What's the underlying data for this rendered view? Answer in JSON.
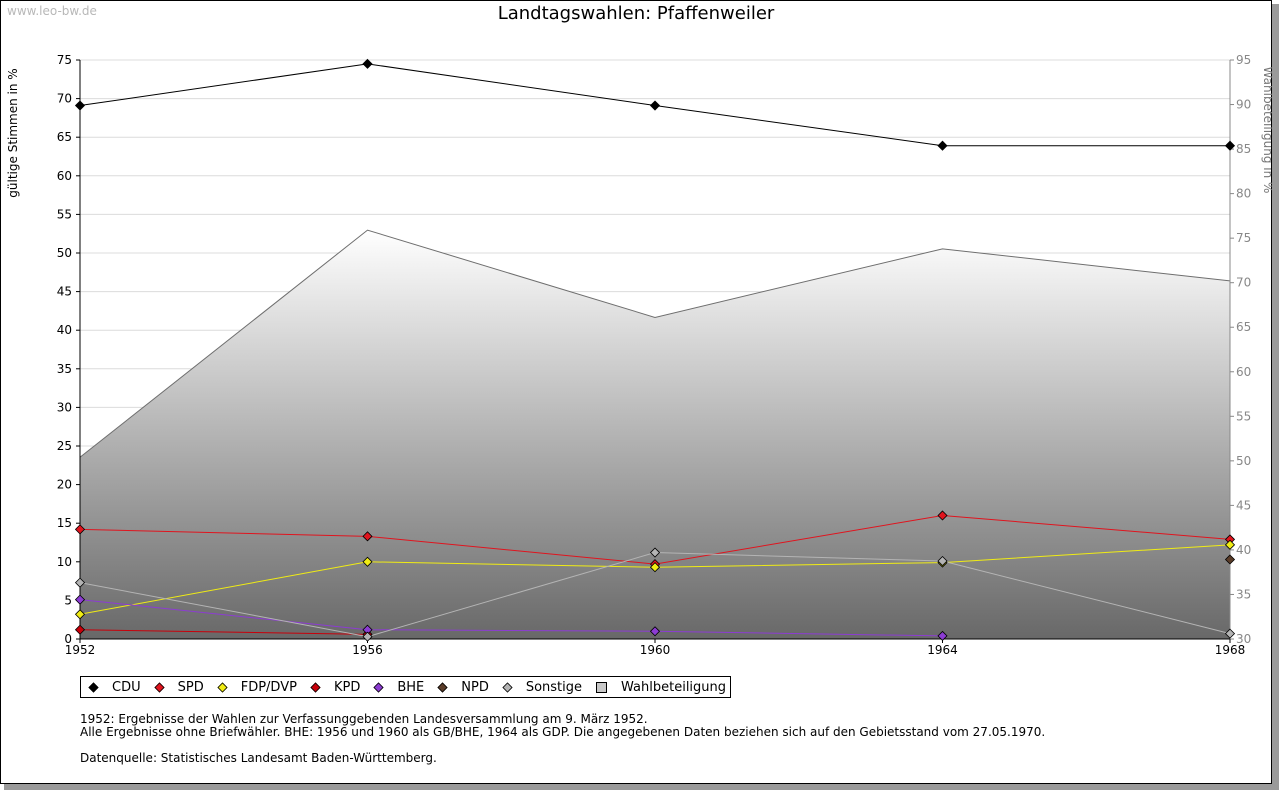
{
  "watermark": "www.leo-bw.de",
  "title": "Landtagswahlen: Pfaffenweiler",
  "colors": {
    "CDU": "#000000",
    "SPD": "#e0141e",
    "FDP/DVP": "#f0ec14",
    "KPD": "#c8000a",
    "BHE": "#8c3cd2",
    "NPD": "#5a3c28",
    "Sonstige": "#b4b4b4",
    "Wahlbeteiligung": "#c8c8c8"
  },
  "chart_data": {
    "type": "line",
    "title": "Landtagswahlen: Pfaffenweiler",
    "x": [
      1952,
      1956,
      1960,
      1964,
      1968
    ],
    "xlabel": "",
    "ylabel": "gültige Stimmen in %",
    "y2label": "Wahlbeteiligung in %",
    "ylim": [
      0,
      75
    ],
    "y2lim": [
      30,
      95
    ],
    "yticks": [
      0,
      5,
      10,
      15,
      20,
      25,
      30,
      35,
      40,
      45,
      50,
      55,
      60,
      65,
      70,
      75
    ],
    "y2ticks": [
      30,
      35,
      40,
      45,
      50,
      55,
      60,
      65,
      70,
      75,
      80,
      85,
      90,
      95
    ],
    "grid": true,
    "legend_position": "bottom-left",
    "series": [
      {
        "name": "CDU",
        "axis": "left",
        "values": [
          69.1,
          74.5,
          69.1,
          63.9,
          63.9
        ]
      },
      {
        "name": "SPD",
        "axis": "left",
        "values": [
          14.2,
          13.3,
          9.7,
          16.0,
          12.9
        ]
      },
      {
        "name": "FDP/DVP",
        "axis": "left",
        "values": [
          3.2,
          10.0,
          9.3,
          9.9,
          12.2
        ]
      },
      {
        "name": "KPD",
        "axis": "left",
        "values": [
          1.2,
          0.6,
          null,
          null,
          null
        ]
      },
      {
        "name": "BHE",
        "axis": "left",
        "values": [
          5.1,
          1.2,
          1.0,
          0.4,
          null
        ]
      },
      {
        "name": "NPD",
        "axis": "left",
        "values": [
          null,
          null,
          null,
          null,
          10.3
        ]
      },
      {
        "name": "Sonstige",
        "axis": "left",
        "values": [
          7.3,
          0.3,
          11.2,
          10.1,
          0.7
        ]
      },
      {
        "name": "Wahlbeteiligung",
        "axis": "right",
        "type": "area",
        "values": [
          50.4,
          75.9,
          66.1,
          73.8,
          70.2
        ]
      }
    ]
  },
  "legend": [
    {
      "label": "CDU",
      "marker": "diamond"
    },
    {
      "label": "SPD",
      "marker": "diamond"
    },
    {
      "label": "FDP/DVP",
      "marker": "diamond"
    },
    {
      "label": "KPD",
      "marker": "diamond"
    },
    {
      "label": "BHE",
      "marker": "diamond"
    },
    {
      "label": "NPD",
      "marker": "diamond"
    },
    {
      "label": "Sonstige",
      "marker": "diamond"
    },
    {
      "label": "Wahlbeteiligung",
      "marker": "square"
    }
  ],
  "notes": {
    "line1": "1952: Ergebnisse der Wahlen zur Verfassunggebenden Landesversammlung am 9. März 1952.",
    "line2": "Alle Ergebnisse ohne Briefwähler. BHE: 1956 und 1960 als GB/BHE, 1964 als GDP. Die angegebenen Daten beziehen sich auf den Gebietsstand vom 27.05.1970.",
    "source": "Datenquelle: Statistisches Landesamt Baden-Württemberg."
  }
}
